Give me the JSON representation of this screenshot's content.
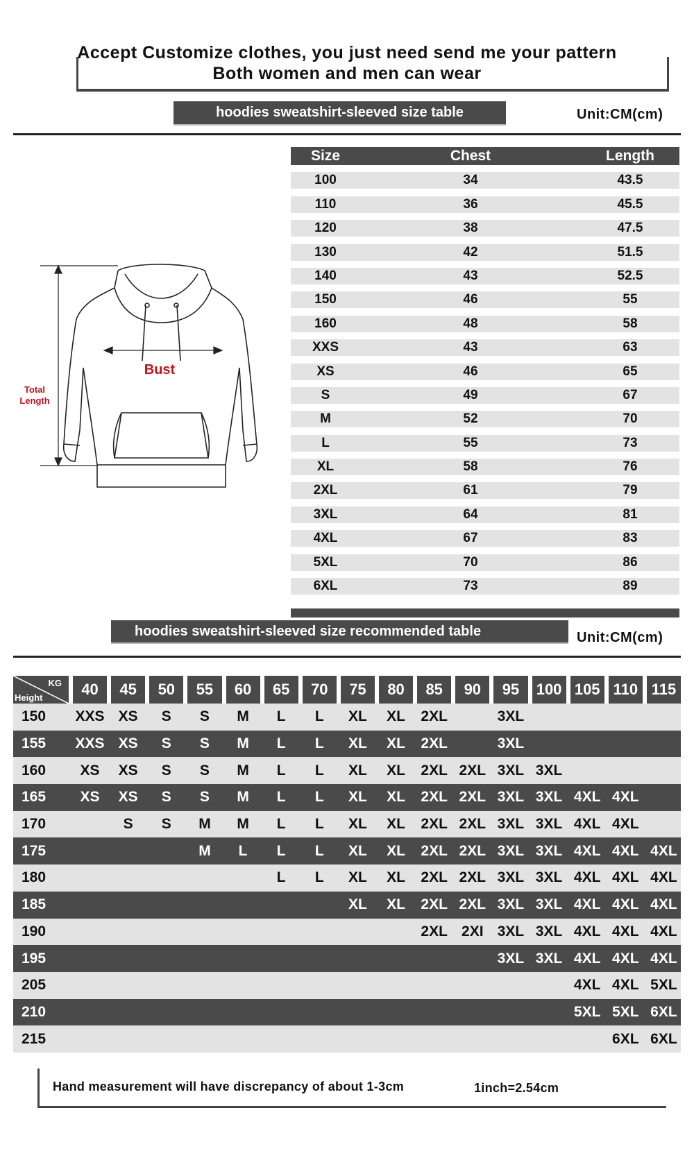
{
  "header": {
    "line1": "Accept Customize clothes, you just need send me your pattern",
    "line2": "Both women and men can wear"
  },
  "size_table": {
    "title": "hoodies sweatshirt-sleeved size  table",
    "unit": "Unit:CM(cm)",
    "columns": [
      "Size",
      "Chest",
      "Length"
    ],
    "rows": [
      [
        "100",
        "34",
        "43.5"
      ],
      [
        "110",
        "36",
        "45.5"
      ],
      [
        "120",
        "38",
        "47.5"
      ],
      [
        "130",
        "42",
        "51.5"
      ],
      [
        "140",
        "43",
        "52.5"
      ],
      [
        "150",
        "46",
        "55"
      ],
      [
        "160",
        "48",
        "58"
      ],
      [
        "XXS",
        "43",
        "63"
      ],
      [
        "XS",
        "46",
        "65"
      ],
      [
        "S",
        "49",
        "67"
      ],
      [
        "M",
        "52",
        "70"
      ],
      [
        "L",
        "55",
        "73"
      ],
      [
        "XL",
        "58",
        "76"
      ],
      [
        "2XL",
        "61",
        "79"
      ],
      [
        "3XL",
        "64",
        "81"
      ],
      [
        "4XL",
        "67",
        "83"
      ],
      [
        "5XL",
        "70",
        "86"
      ],
      [
        "6XL",
        "73",
        "89"
      ]
    ]
  },
  "diagram": {
    "bust_label": "Bust",
    "length_label_1": "Total",
    "length_label_2": "Length",
    "accent_color": "#c0141c"
  },
  "recommend_table": {
    "title": "hoodies sweatshirt-sleeved size recommended table",
    "unit": "Unit:CM(cm)",
    "corner_kg": "KG",
    "corner_height": "Height",
    "weights": [
      "40",
      "45",
      "50",
      "55",
      "60",
      "65",
      "70",
      "75",
      "80",
      "85",
      "90",
      "95",
      "100",
      "105",
      "110",
      "115"
    ],
    "rows": [
      {
        "height": "150",
        "sizes": [
          "XXS",
          "XS",
          "S",
          "S",
          "M",
          "L",
          "L",
          "XL",
          "XL",
          "2XL",
          "",
          "3XL",
          "",
          "",
          "",
          ""
        ]
      },
      {
        "height": "155",
        "sizes": [
          "XXS",
          "XS",
          "S",
          "S",
          "M",
          "L",
          "L",
          "XL",
          "XL",
          "2XL",
          "",
          "3XL",
          "",
          "",
          "",
          ""
        ]
      },
      {
        "height": "160",
        "sizes": [
          "XS",
          "XS",
          "S",
          "S",
          "M",
          "L",
          "L",
          "XL",
          "XL",
          "2XL",
          "2XL",
          "3XL",
          "3XL",
          "",
          "",
          ""
        ]
      },
      {
        "height": "165",
        "sizes": [
          "XS",
          "XS",
          "S",
          "S",
          "M",
          "L",
          "L",
          "XL",
          "XL",
          "2XL",
          "2XL",
          "3XL",
          "3XL",
          "4XL",
          "4XL",
          ""
        ]
      },
      {
        "height": "170",
        "sizes": [
          "",
          "S",
          "S",
          "M",
          "M",
          "L",
          "L",
          "XL",
          "XL",
          "2XL",
          "2XL",
          "3XL",
          "3XL",
          "4XL",
          "4XL",
          ""
        ]
      },
      {
        "height": "175",
        "sizes": [
          "",
          "",
          "",
          "M",
          "L",
          "L",
          "L",
          "XL",
          "XL",
          "2XL",
          "2XL",
          "3XL",
          "3XL",
          "4XL",
          "4XL",
          "4XL"
        ]
      },
      {
        "height": "180",
        "sizes": [
          "",
          "",
          "",
          "",
          "",
          "L",
          "L",
          "XL",
          "XL",
          "2XL",
          "2XL",
          "3XL",
          "3XL",
          "4XL",
          "4XL",
          "4XL"
        ]
      },
      {
        "height": "185",
        "sizes": [
          "",
          "",
          "",
          "",
          "",
          "",
          "",
          "XL",
          "XL",
          "2XL",
          "2XL",
          "3XL",
          "3XL",
          "4XL",
          "4XL",
          "4XL"
        ]
      },
      {
        "height": "190",
        "sizes": [
          "",
          "",
          "",
          "",
          "",
          "",
          "",
          "",
          "",
          "2XL",
          "2XI",
          "3XL",
          "3XL",
          "4XL",
          "4XL",
          "4XL"
        ]
      },
      {
        "height": "195",
        "sizes": [
          "",
          "",
          "",
          "",
          "",
          "",
          "",
          "",
          "",
          "",
          "",
          "3XL",
          "3XL",
          "4XL",
          "4XL",
          "4XL"
        ]
      },
      {
        "height": "205",
        "sizes": [
          "",
          "",
          "",
          "",
          "",
          "",
          "",
          "",
          "",
          "",
          "",
          "",
          "",
          "4XL",
          "4XL",
          "5XL"
        ]
      },
      {
        "height": "210",
        "sizes": [
          "",
          "",
          "",
          "",
          "",
          "",
          "",
          "",
          "",
          "",
          "",
          "",
          "",
          "5XL",
          "5XL",
          "6XL"
        ]
      },
      {
        "height": "215",
        "sizes": [
          "",
          "",
          "",
          "",
          "",
          "",
          "",
          "",
          "",
          "",
          "",
          "",
          "",
          "",
          "6XL",
          "6XL"
        ]
      }
    ]
  },
  "footer": {
    "note": "Hand measurement will have discrepancy of about  1-3cm",
    "conversion": "1inch=2.54cm"
  }
}
